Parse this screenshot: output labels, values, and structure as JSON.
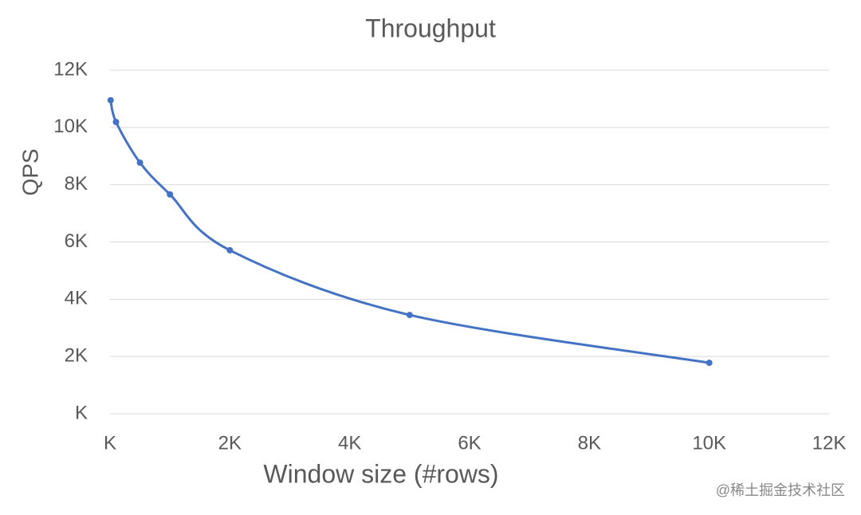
{
  "chart_data": {
    "type": "line",
    "title": "Throughput",
    "x_label": "Window size (#rows)",
    "y_label": "QPS",
    "x": [
      10,
      100,
      500,
      1000,
      2000,
      5000,
      10000
    ],
    "series": [
      {
        "name": "QPS",
        "color": "#4472c4",
        "values": [
          10950,
          10190,
          8770,
          7660,
          5710,
          3450,
          1780
        ]
      }
    ],
    "xlim": [
      0,
      12000
    ],
    "ylim": [
      0,
      12000
    ],
    "xticks": [
      {
        "value": 0,
        "label": "K"
      },
      {
        "value": 2000,
        "label": "2K"
      },
      {
        "value": 4000,
        "label": "4K"
      },
      {
        "value": 6000,
        "label": "6K"
      },
      {
        "value": 8000,
        "label": "8K"
      },
      {
        "value": 10000,
        "label": "10K"
      },
      {
        "value": 12000,
        "label": "12K"
      }
    ],
    "yticks": [
      {
        "value": 0,
        "label": "K"
      },
      {
        "value": 2000,
        "label": "2K"
      },
      {
        "value": 4000,
        "label": "4K"
      },
      {
        "value": 6000,
        "label": "6K"
      },
      {
        "value": 8000,
        "label": "8K"
      },
      {
        "value": 10000,
        "label": "10K"
      },
      {
        "value": 12000,
        "label": "12K"
      }
    ],
    "grid": true,
    "smooth": true,
    "markers": true
  },
  "watermark": "@稀土掘金技术社区"
}
